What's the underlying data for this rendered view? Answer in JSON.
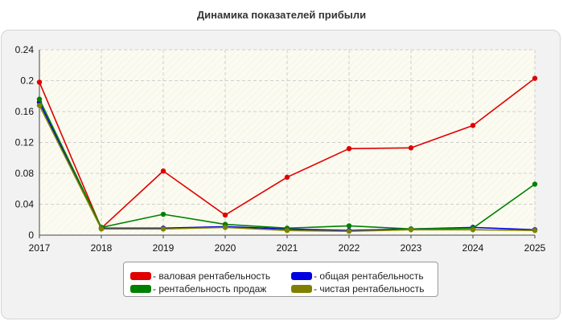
{
  "chart_data": {
    "type": "line",
    "title": "Динамика показателей прибыли",
    "xlabel": "",
    "ylabel": "",
    "categories": [
      "2017",
      "2018",
      "2019",
      "2020",
      "2021",
      "2022",
      "2023",
      "2024",
      "2025"
    ],
    "ylim": [
      0,
      0.24
    ],
    "yticks": [
      "0",
      "0.04",
      "0.08",
      "0.12",
      "0.16",
      "0.2",
      "0.24"
    ],
    "grid": true,
    "legend_position": "bottom",
    "series": [
      {
        "name": "- валовая рентабельность",
        "color": "#e00000",
        "values": [
          0.198,
          0.009,
          0.083,
          0.026,
          0.075,
          0.112,
          0.113,
          0.142,
          0.203
        ]
      },
      {
        "name": "- общая рентабельность",
        "color": "#0000e0",
        "values": [
          0.172,
          0.009,
          0.009,
          0.011,
          0.008,
          0.006,
          0.008,
          0.01,
          0.007
        ]
      },
      {
        "name": "- рентабельность продаж",
        "color": "#008000",
        "values": [
          0.176,
          0.01,
          0.027,
          0.014,
          0.009,
          0.012,
          0.008,
          0.009,
          0.066
        ]
      },
      {
        "name": "- чистая рентабельность",
        "color": "#808000",
        "values": [
          0.168,
          0.008,
          0.008,
          0.01,
          0.006,
          0.005,
          0.007,
          0.007,
          0.006
        ]
      }
    ]
  }
}
